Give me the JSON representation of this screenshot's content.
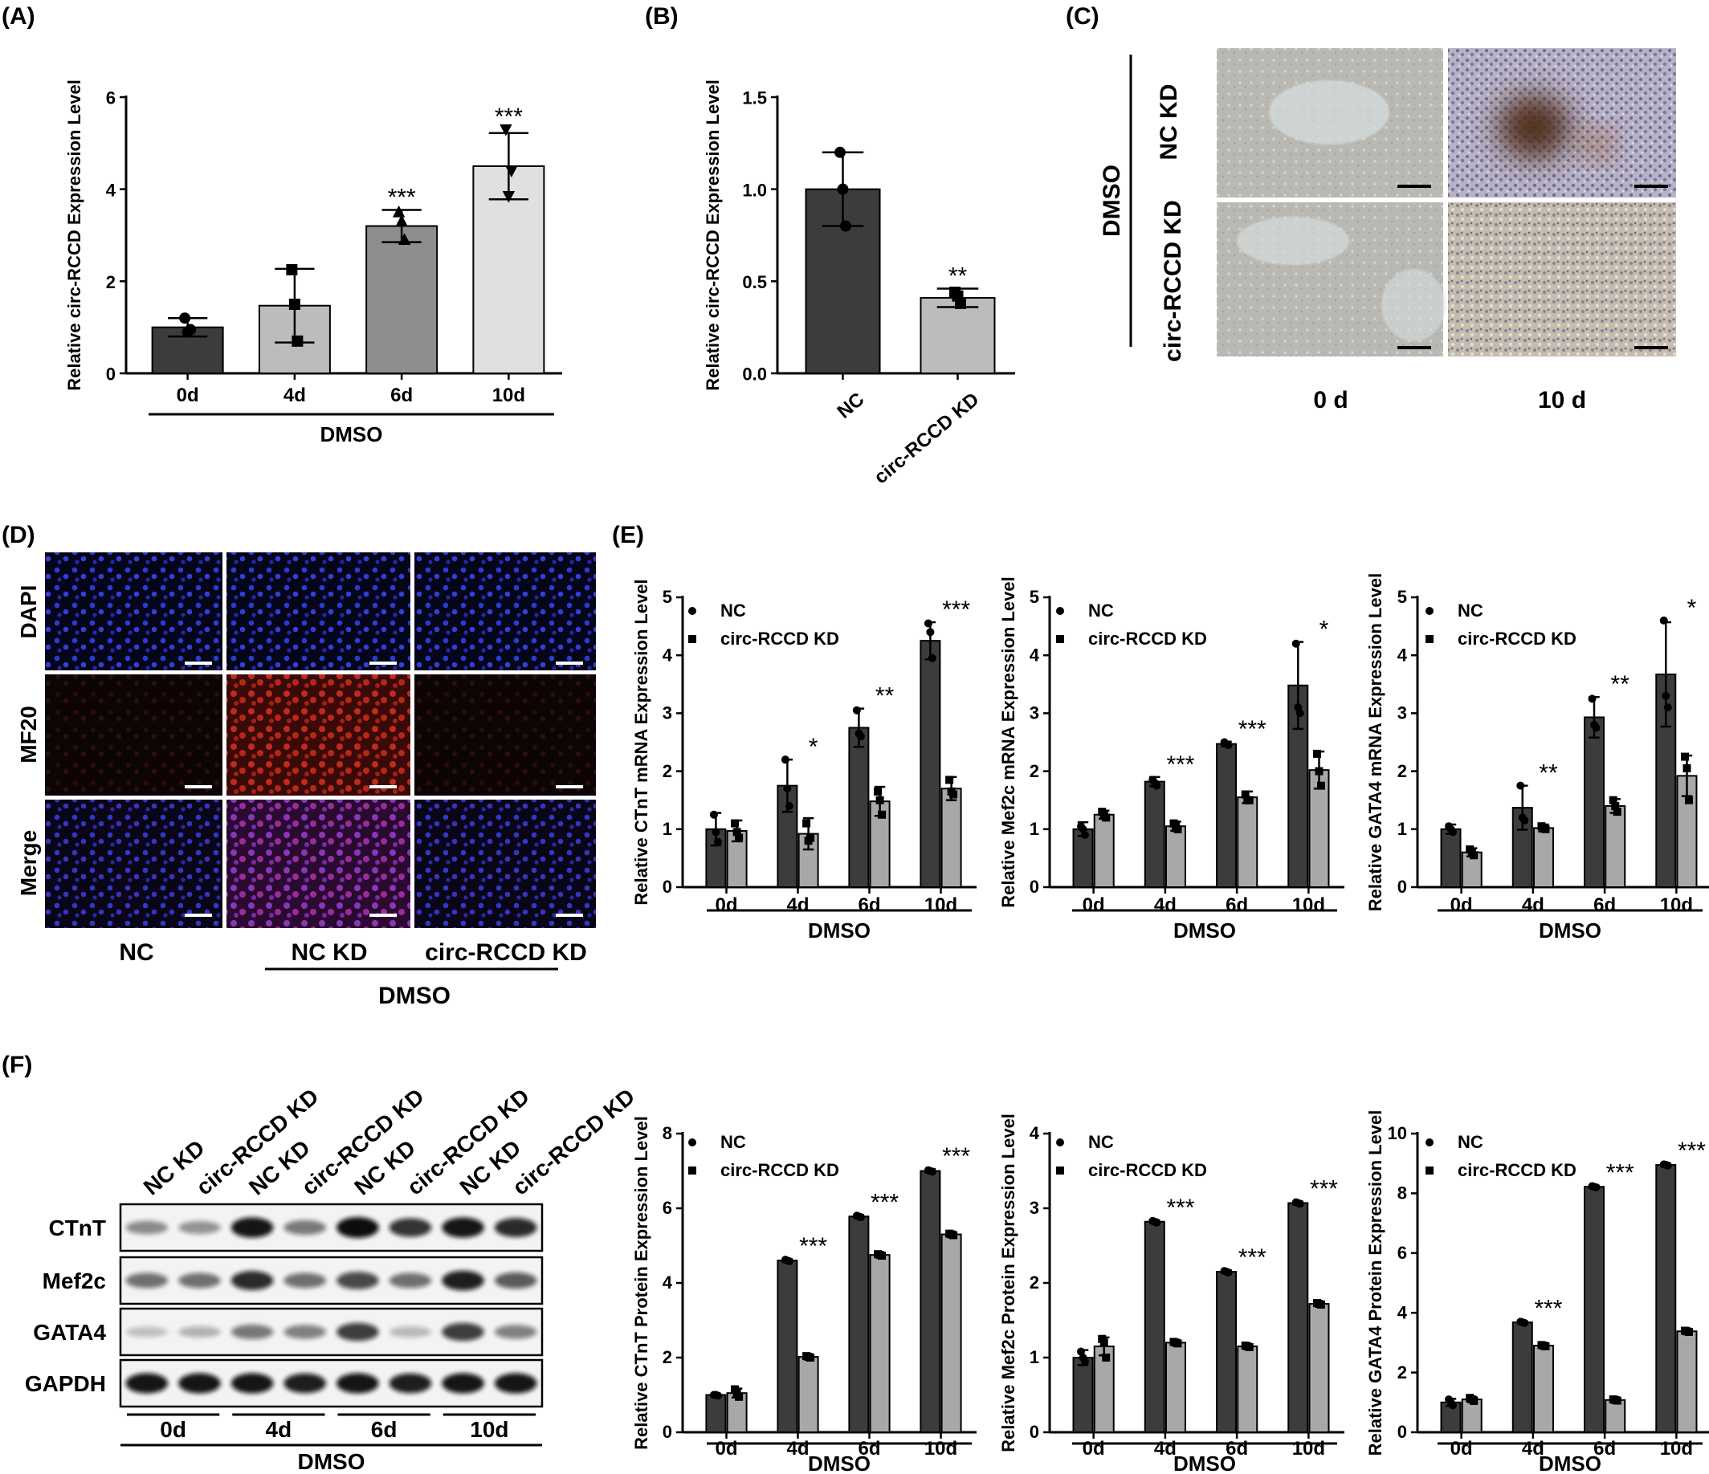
{
  "panels": {
    "A": "(A)",
    "B": "(B)",
    "C": "(C)",
    "D": "(D)",
    "E": "(E)",
    "F": "(F)"
  },
  "panel_c": {
    "group": "DMSO",
    "rows": [
      "NC KD",
      "circ-RCCD KD"
    ],
    "cols": [
      "0 d",
      "10 d"
    ]
  },
  "panel_d": {
    "rows": [
      "DAPI",
      "MF20",
      "Merge"
    ],
    "cols": [
      "NC",
      "NC KD",
      "circ-RCCD KD"
    ],
    "group": "DMSO",
    "colors": {
      "dapi": "#1c2fb8",
      "mf20": "#a0201a",
      "merge": "#6a2a90"
    }
  },
  "panel_f_blot": {
    "lane_labels": [
      "NC KD",
      "circ-RCCD KD",
      "NC KD",
      "circ-RCCD KD",
      "NC KD",
      "circ-RCCD KD",
      "NC KD",
      "circ-RCCD KD"
    ],
    "proteins": [
      "CTnT",
      "Mef2c",
      "GATA4",
      "GAPDH"
    ],
    "days": [
      "0d",
      "4d",
      "6d",
      "10d"
    ],
    "group": "DMSO",
    "band_intensity": [
      [
        0.35,
        0.3,
        0.95,
        0.45,
        1.0,
        0.8,
        0.95,
        0.85
      ],
      [
        0.5,
        0.5,
        0.85,
        0.5,
        0.7,
        0.5,
        0.9,
        0.6
      ],
      [
        0.08,
        0.15,
        0.45,
        0.4,
        0.75,
        0.12,
        0.75,
        0.4
      ],
      [
        0.95,
        0.95,
        0.95,
        0.9,
        0.95,
        0.9,
        0.95,
        0.95
      ]
    ]
  },
  "legend": {
    "nc": "NC",
    "kd": "circ-RCCD KD"
  },
  "colors": {
    "nc": "#3c3c3c",
    "kd": "#a8a8a8",
    "a0": "#3c3c3c",
    "a1": "#bcbcbc",
    "a2": "#8e8e8e",
    "a3": "#e0e0e0"
  },
  "chart_data": [
    {
      "id": "A",
      "type": "bar",
      "ylabel": "Relative circ-RCCD Expression Level",
      "group": "DMSO",
      "categories": [
        "0d",
        "4d",
        "6d",
        "10d"
      ],
      "values": [
        1.0,
        1.47,
        3.2,
        4.5
      ],
      "errors": [
        0.2,
        0.8,
        0.35,
        0.72
      ],
      "points": [
        [
          1.2,
          0.9,
          0.95
        ],
        [
          2.25,
          1.5,
          0.7
        ],
        [
          3.5,
          3.3,
          2.9
        ],
        [
          5.3,
          3.85,
          4.4
        ]
      ],
      "significance": [
        "",
        "",
        "***",
        "***"
      ],
      "ylim": [
        0,
        6
      ],
      "yticks": [
        0,
        2,
        4,
        6
      ]
    },
    {
      "id": "B",
      "type": "bar",
      "ylabel": "Relative circ-RCCD Expression Level",
      "categories": [
        "NC",
        "circ-RCCD KD"
      ],
      "values": [
        1.0,
        0.41
      ],
      "errors": [
        0.2,
        0.05
      ],
      "points": [
        [
          1.2,
          1.0,
          0.8
        ],
        [
          0.44,
          0.42,
          0.38
        ]
      ],
      "significance": [
        "",
        "**"
      ],
      "ylim": [
        0,
        1.5
      ],
      "yticks": [
        0.0,
        0.5,
        1.0,
        1.5
      ]
    },
    {
      "id": "E1",
      "type": "bar",
      "ylabel": "Relative CTnT mRNA Expression Level",
      "group": "DMSO",
      "categories": [
        "0d",
        "4d",
        "6d",
        "10d"
      ],
      "series": [
        {
          "name": "NC",
          "values": [
            1.0,
            1.75,
            2.75,
            4.25
          ],
          "errors": [
            0.28,
            0.45,
            0.33,
            0.32
          ],
          "points": [
            [
              1.25,
              0.95,
              0.78
            ],
            [
              2.2,
              1.7,
              1.4
            ],
            [
              3.05,
              2.65,
              2.6
            ],
            [
              4.55,
              4.4,
              3.95
            ]
          ]
        },
        {
          "name": "circ-RCCD KD",
          "values": [
            0.97,
            0.92,
            1.48,
            1.7
          ],
          "errors": [
            0.18,
            0.27,
            0.25,
            0.2
          ],
          "points": [
            [
              1.1,
              0.95,
              0.85
            ],
            [
              1.1,
              0.8,
              0.85
            ],
            [
              1.65,
              1.5,
              1.25
            ],
            [
              1.85,
              1.65,
              1.6
            ]
          ]
        }
      ],
      "significance": [
        "",
        "*",
        "**",
        "***"
      ],
      "ylim": [
        0,
        5
      ],
      "yticks": [
        0,
        1,
        2,
        3,
        4,
        5
      ]
    },
    {
      "id": "E2",
      "type": "bar",
      "ylabel": "Relative Mef2c mRNA Expression Level",
      "group": "DMSO",
      "categories": [
        "0d",
        "4d",
        "6d",
        "10d"
      ],
      "series": [
        {
          "name": "NC",
          "values": [
            1.0,
            1.82,
            2.47,
            3.48
          ],
          "errors": [
            0.12,
            0.08,
            0.04,
            0.75
          ],
          "points": [
            [
              1.05,
              1.0,
              0.9
            ],
            [
              1.85,
              1.8,
              1.75
            ],
            [
              2.5,
              2.47,
              2.45
            ],
            [
              4.2,
              3.1,
              3.0
            ]
          ]
        },
        {
          "name": "circ-RCCD KD",
          "values": [
            1.25,
            1.05,
            1.55,
            2.02
          ],
          "errors": [
            0.07,
            0.08,
            0.1,
            0.32
          ],
          "points": [
            [
              1.3,
              1.25,
              1.2
            ],
            [
              1.1,
              1.05,
              1.0
            ],
            [
              1.6,
              1.5,
              1.5
            ],
            [
              2.3,
              2.0,
              1.75
            ]
          ]
        }
      ],
      "significance": [
        "",
        "***",
        "***",
        "*"
      ],
      "ylim": [
        0,
        5
      ],
      "yticks": [
        0,
        1,
        2,
        3,
        4,
        5
      ]
    },
    {
      "id": "E3",
      "type": "bar",
      "ylabel": "Relative GATA4 mRNA Expression Level",
      "group": "DMSO",
      "categories": [
        "0d",
        "4d",
        "6d",
        "10d"
      ],
      "series": [
        {
          "name": "NC",
          "values": [
            1.0,
            1.37,
            2.93,
            3.67
          ],
          "errors": [
            0.08,
            0.38,
            0.35,
            0.9
          ],
          "points": [
            [
              1.05,
              1.0,
              0.95
            ],
            [
              1.75,
              1.2,
              1.15
            ],
            [
              3.25,
              2.8,
              2.75
            ],
            [
              4.6,
              3.3,
              3.1
            ]
          ]
        },
        {
          "name": "circ-RCCD KD",
          "values": [
            0.6,
            1.02,
            1.4,
            1.92
          ],
          "errors": [
            0.07,
            0.06,
            0.12,
            0.35
          ],
          "points": [
            [
              0.65,
              0.6,
              0.55
            ],
            [
              1.05,
              1.02,
              1.0
            ],
            [
              1.5,
              1.4,
              1.3
            ],
            [
              2.25,
              2.05,
              1.5
            ]
          ]
        }
      ],
      "significance": [
        "",
        "**",
        "**",
        "*"
      ],
      "ylim": [
        0,
        5
      ],
      "yticks": [
        0,
        1,
        2,
        3,
        4,
        5
      ]
    },
    {
      "id": "F1",
      "type": "bar",
      "ylabel": "Relative CTnT Protein Expression Level",
      "group": "DMSO",
      "categories": [
        "0d",
        "4d",
        "6d",
        "10d"
      ],
      "series": [
        {
          "name": "NC",
          "values": [
            1.0,
            4.6,
            5.78,
            7.0
          ],
          "errors": [
            0.03,
            0.04,
            0.04,
            0.05
          ],
          "points": [
            [
              1.0,
              1.0,
              0.98
            ],
            [
              4.62,
              4.6,
              4.58
            ],
            [
              5.8,
              5.78,
              5.76
            ],
            [
              7.02,
              7.0,
              6.98
            ]
          ]
        },
        {
          "name": "circ-RCCD KD",
          "values": [
            1.05,
            2.02,
            4.75,
            5.3
          ],
          "errors": [
            0.12,
            0.04,
            0.04,
            0.05
          ],
          "points": [
            [
              1.15,
              1.05,
              0.95
            ],
            [
              2.04,
              2.02,
              2.0
            ],
            [
              4.77,
              4.75,
              4.73
            ],
            [
              5.32,
              5.3,
              5.28
            ]
          ]
        }
      ],
      "significance": [
        "",
        "***",
        "***",
        "***"
      ],
      "ylim": [
        0,
        8
      ],
      "yticks": [
        0,
        2,
        4,
        6,
        8
      ]
    },
    {
      "id": "F2",
      "type": "bar",
      "ylabel": "Relative Mef2c Protein Expression Level",
      "group": "DMSO",
      "categories": [
        "0d",
        "4d",
        "6d",
        "10d"
      ],
      "series": [
        {
          "name": "NC",
          "values": [
            1.0,
            2.82,
            2.15,
            3.07
          ],
          "errors": [
            0.1,
            0.02,
            0.02,
            0.02
          ],
          "points": [
            [
              1.08,
              1.0,
              0.95
            ],
            [
              2.83,
              2.82,
              2.81
            ],
            [
              2.16,
              2.15,
              2.14
            ],
            [
              3.08,
              3.07,
              3.06
            ]
          ]
        },
        {
          "name": "circ-RCCD KD",
          "values": [
            1.15,
            1.2,
            1.15,
            1.72
          ],
          "errors": [
            0.12,
            0.02,
            0.02,
            0.02
          ],
          "points": [
            [
              1.25,
              1.2,
              1.0
            ],
            [
              1.21,
              1.2,
              1.19
            ],
            [
              1.16,
              1.15,
              1.14
            ],
            [
              1.73,
              1.72,
              1.71
            ]
          ]
        }
      ],
      "significance": [
        "",
        "***",
        "***",
        "***"
      ],
      "ylim": [
        0,
        4
      ],
      "yticks": [
        0,
        1,
        2,
        3,
        4
      ]
    },
    {
      "id": "F3",
      "type": "bar",
      "ylabel": "Relative GATA4 Protein Expression Level",
      "group": "DMSO",
      "categories": [
        "0d",
        "4d",
        "6d",
        "10d"
      ],
      "series": [
        {
          "name": "NC",
          "values": [
            1.0,
            3.68,
            8.22,
            8.95
          ],
          "errors": [
            0.12,
            0.04,
            0.04,
            0.05
          ],
          "points": [
            [
              1.1,
              1.0,
              0.9
            ],
            [
              3.7,
              3.68,
              3.66
            ],
            [
              8.24,
              8.22,
              8.2
            ],
            [
              8.97,
              8.95,
              8.93
            ]
          ]
        },
        {
          "name": "circ-RCCD KD",
          "values": [
            1.1,
            2.9,
            1.08,
            3.38
          ],
          "errors": [
            0.08,
            0.04,
            0.04,
            0.04
          ],
          "points": [
            [
              1.15,
              1.1,
              1.05
            ],
            [
              2.92,
              2.9,
              2.88
            ],
            [
              1.1,
              1.08,
              1.06
            ],
            [
              3.4,
              3.38,
              3.36
            ]
          ]
        }
      ],
      "significance": [
        "",
        "***",
        "***",
        "***"
      ],
      "ylim": [
        0,
        10
      ],
      "yticks": [
        0,
        2,
        4,
        6,
        8,
        10
      ]
    }
  ]
}
